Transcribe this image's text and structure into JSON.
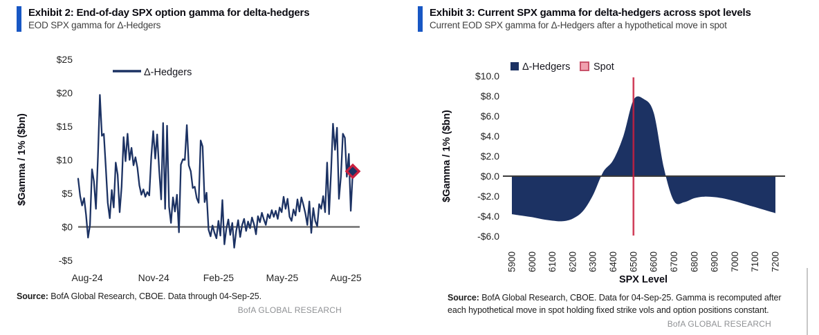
{
  "brand": "BofA GLOBAL RESEARCH",
  "colors": {
    "navy": "#1c3263",
    "crimson": "#c9203f",
    "spot_pink": "#f0a0ae",
    "accent_blue": "#1857c4",
    "zero_line_left": "#6e6e6e",
    "zero_line_right": "#3a3a3a"
  },
  "panels": [
    {
      "exhibit_label": "Exhibit 2: End-of-day SPX option gamma for delta-hedgers",
      "subtitle": "EOD SPX gamma for Δ-Hedgers",
      "source_label": "Source:",
      "source_text": " BofA Global Research, CBOE. Data through 04-Sep-25."
    },
    {
      "exhibit_label": "Exhibit 3: Current SPX gamma for delta-hedgers across spot levels",
      "subtitle": "Current EOD SPX gamma for Δ-Hedgers after a hypothetical move in spot",
      "source_label": "Source:",
      "source_text": " BofA Global Research, CBOE. Data for 04-Sep-25. Gamma is recomputed after each hypothetical move in spot holding fixed strike vols and option positions constant."
    }
  ],
  "chart_data": [
    {
      "type": "line",
      "title": "Exhibit 2: End-of-day SPX option gamma for delta-hedgers",
      "subtitle": "EOD SPX gamma for Δ-Hedgers",
      "ylabel": "$Gamma / 1% ($bn)",
      "xlabel": "",
      "ylim": [
        -5,
        25
      ],
      "grid": false,
      "legend_position": "top",
      "series": [
        {
          "name": "Δ-Hedgers",
          "values": [
            7.2,
            4.6,
            3.2,
            4.3,
            1.8,
            -1.6,
            0.3,
            8.6,
            6.8,
            2.7,
            10.5,
            19.7,
            13.6,
            13.9,
            8.8,
            3.6,
            1.3,
            5.5,
            2.9,
            9.6,
            7.8,
            2.2,
            6.0,
            13.4,
            9.8,
            13.9,
            10.0,
            11.8,
            9.2,
            10.4,
            8.8,
            6.2,
            4.8,
            5.6,
            4.5,
            5.2,
            4.7,
            10.5,
            14.3,
            10.2,
            13.8,
            8.5,
            4.1,
            15.5,
            2.7,
            15.1,
            3.0,
            0.6,
            4.4,
            2.3,
            4.8,
            -0.8,
            9.3,
            10.1,
            10.0,
            15.2,
            9.2,
            8.3,
            5.8,
            6.0,
            4.3,
            3.6,
            12.9,
            12.0,
            3.7,
            5.1,
            -0.4,
            -1.4,
            0.2,
            -0.9,
            -1.7,
            0.9,
            -1.3,
            4.0,
            -2.6,
            -0.3,
            1.1,
            -1.2,
            0.6,
            -3.1,
            -0.6,
            1.0,
            -1.5,
            0.3,
            1.2,
            -0.6,
            0.8,
            -0.2,
            1.4,
            0.4,
            -1.1,
            1.6,
            0.7,
            2.1,
            1.1,
            0.3,
            1.9,
            1.3,
            2.5,
            1.5,
            2.4,
            1.2,
            2.9,
            2.2,
            4.5,
            2.7,
            4.2,
            1.5,
            0.9,
            2.6,
            1.7,
            4.1,
            2.3,
            4.4,
            3.3,
            2.0,
            0.3,
            3.8,
            -0.9,
            2.8,
            0.9,
            0.1,
            3.4,
            2.7,
            4.6,
            2.2,
            9.6,
            1.9,
            8.2,
            15.4,
            11.5,
            14.8,
            4.2,
            7.6,
            13.9,
            13.3,
            7.5,
            10.9,
            2.4,
            8.3
          ]
        }
      ],
      "y_ticks": [
        {
          "label": "$25",
          "value": 25
        },
        {
          "label": "$20",
          "value": 20
        },
        {
          "label": "$15",
          "value": 15
        },
        {
          "label": "$10",
          "value": 10
        },
        {
          "label": "$5",
          "value": 5
        },
        {
          "label": "$0",
          "value": 0
        },
        {
          "label": "-$5",
          "value": -5
        }
      ],
      "x_ticks": [
        {
          "label": "Aug-24",
          "pos": 0.033
        },
        {
          "label": "Nov-24",
          "pos": 0.275
        },
        {
          "label": "Feb-25",
          "pos": 0.511
        },
        {
          "label": "May-25",
          "pos": 0.743
        },
        {
          "label": "Aug-25",
          "pos": 0.975
        }
      ],
      "end_marker": {
        "shape": "red-diamond",
        "value": 8.3
      }
    },
    {
      "type": "area",
      "title": "Exhibit 3: Current SPX gamma for delta-hedgers across spot levels",
      "subtitle": "Current EOD SPX gamma for Δ-Hedgers after a hypothetical move in spot",
      "ylabel": "$Gamma / 1% ($bn)",
      "xlabel": "SPX Level",
      "ylim": [
        -6,
        10
      ],
      "grid": false,
      "legend_position": "top",
      "legend": [
        {
          "label": "Δ-Hedgers",
          "swatch": "#1c3263"
        },
        {
          "label": "Spot",
          "swatch": "#f0a0ae"
        }
      ],
      "x": [
        5900,
        5950,
        6000,
        6050,
        6100,
        6150,
        6200,
        6250,
        6300,
        6350,
        6400,
        6450,
        6500,
        6550,
        6600,
        6650,
        6700,
        6750,
        6800,
        6850,
        6900,
        6950,
        7000,
        7050,
        7100,
        7150,
        7200
      ],
      "values": [
        -3.8,
        -3.95,
        -4.1,
        -4.3,
        -4.45,
        -4.5,
        -4.25,
        -3.5,
        -1.9,
        0.4,
        1.6,
        4.0,
        7.6,
        7.7,
        6.3,
        0.8,
        -2.5,
        -2.6,
        -2.2,
        -2.05,
        -2.1,
        -2.25,
        -2.5,
        -2.8,
        -3.1,
        -3.4,
        -3.7
      ],
      "spot_line_x": 6500,
      "y_ticks": [
        {
          "label": "$10.0",
          "value": 10
        },
        {
          "label": "$8.0",
          "value": 8
        },
        {
          "label": "$6.0",
          "value": 6
        },
        {
          "label": "$4.0",
          "value": 4
        },
        {
          "label": "$2.0",
          "value": 2
        },
        {
          "label": "$0.0",
          "value": 0
        },
        {
          "label": "-$2.0",
          "value": -2
        },
        {
          "label": "-$4.0",
          "value": -4
        },
        {
          "label": "-$6.0",
          "value": -6
        }
      ],
      "x_tick_labels": [
        "5900",
        "6000",
        "6100",
        "6200",
        "6300",
        "6400",
        "6500",
        "6600",
        "6700",
        "6800",
        "6900",
        "7000",
        "7100",
        "7200"
      ]
    }
  ]
}
